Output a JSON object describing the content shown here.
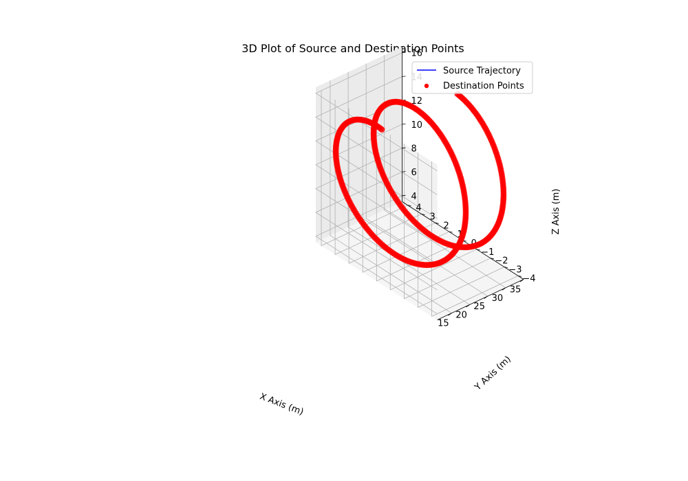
{
  "chart_data": {
    "type": "scatter",
    "projection": "3d",
    "title": "3D Plot of Source and Destination Points",
    "xlabel": "X Axis (m)",
    "ylabel": "Y Axis (m)",
    "zlabel": "Z Axis (m)",
    "xlim": [
      11,
      35
    ],
    "ylim": [
      -4.4,
      4.4
    ],
    "zlim": [
      3.5,
      16.5
    ],
    "xticks": [
      "15",
      "20",
      "25",
      "30",
      "35"
    ],
    "yticks": [
      "−4",
      "−3",
      "−2",
      "−1",
      "0",
      "1",
      "2",
      "3",
      "4"
    ],
    "zticks": [
      "4",
      "6",
      "8",
      "10",
      "12",
      "14",
      "16"
    ],
    "grid": true,
    "legend_position": "upper right",
    "legend": [
      {
        "label": "Source Trajectory",
        "kind": "line",
        "color": "#0000ff"
      },
      {
        "label": "Destination Points",
        "kind": "marker",
        "color": "#ff0000"
      }
    ],
    "series": [
      {
        "name": "Source Trajectory",
        "kind": "line",
        "color": "#0000ff",
        "curve": "helix",
        "center_x": 23,
        "center_y": 0,
        "radius": 4,
        "x_start": 12.5,
        "x_end": 33.5,
        "turns": 2,
        "z_start": 16,
        "z_end": 4.5
      },
      {
        "name": "Destination Points",
        "kind": "scatter",
        "color": "#ff0000",
        "curve": "helix",
        "center_x": 23,
        "center_y": 0,
        "radius": 4,
        "x_start": 12.5,
        "x_end": 33.5,
        "turns": 2,
        "z_start": 16,
        "z_end": 4.5,
        "n_points": 400
      }
    ]
  }
}
